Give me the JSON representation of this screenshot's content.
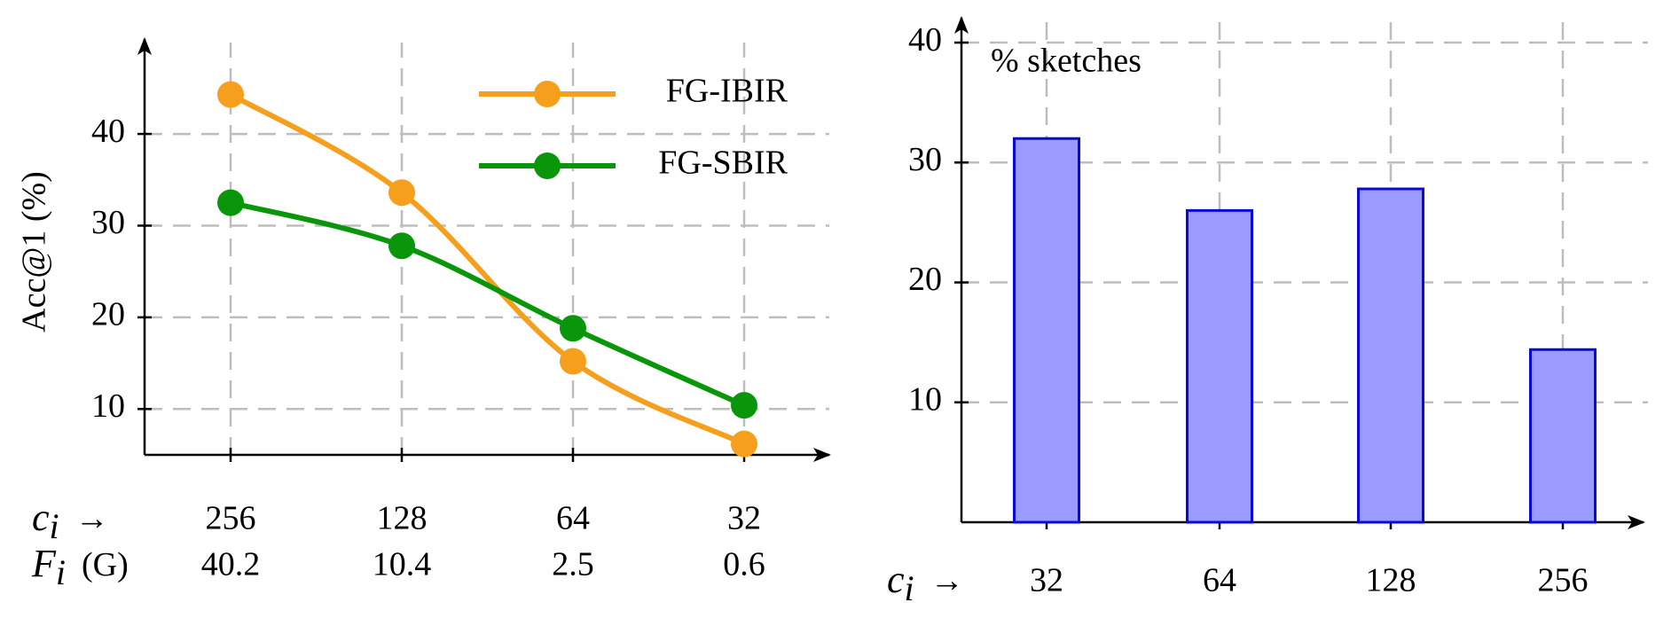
{
  "chart_data": [
    {
      "type": "line",
      "y_label": "Acc@1 (%)",
      "x_label_rows": [
        {
          "symbol": "c",
          "subscript": "i",
          "suffix": "→"
        },
        {
          "symbol": "F",
          "subscript": "i",
          "suffix": "(G)"
        }
      ],
      "categories": [
        "256",
        "128",
        "64",
        "32"
      ],
      "flops": [
        40.2,
        10.4,
        2.5,
        0.6
      ],
      "series": [
        {
          "name": "FG-IBIR",
          "color": "#f59f1c",
          "values": [
            44.3,
            33.6,
            15.2,
            6.2
          ]
        },
        {
          "name": "FG-SBIR",
          "color": "#0a960a",
          "values": [
            32.5,
            27.8,
            18.8,
            10.4
          ]
        }
      ],
      "ylim": [
        5,
        49
      ],
      "yticks": [
        10,
        20,
        30,
        40
      ],
      "grid": true,
      "smooth": true
    },
    {
      "type": "bar",
      "title": "% sketches",
      "x_label_rows": [
        {
          "symbol": "c",
          "subscript": "i",
          "suffix": "→"
        }
      ],
      "categories": [
        "32",
        "64",
        "128",
        "256"
      ],
      "values": [
        32,
        26,
        27.8,
        14.4
      ],
      "color": "#9b9bff",
      "edge_color": "#0a0ad8",
      "ylim": [
        0,
        42
      ],
      "yticks": [
        10,
        20,
        30,
        40
      ],
      "grid": true
    }
  ]
}
